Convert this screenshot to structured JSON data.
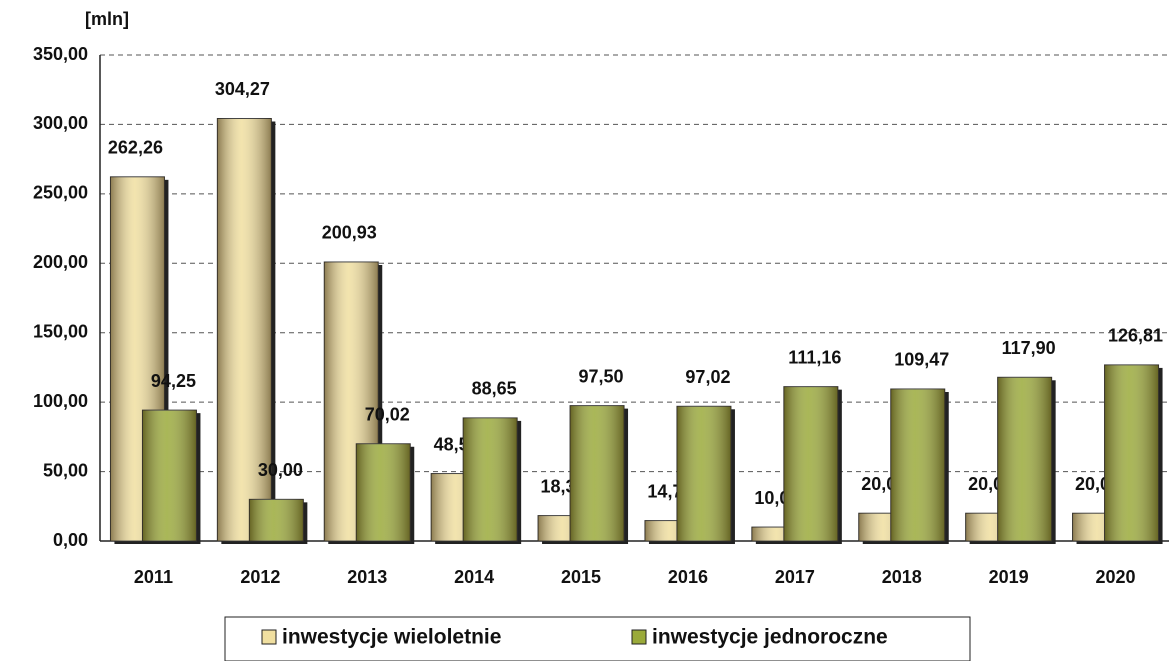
{
  "chart_data": {
    "type": "bar",
    "y_axis_label": "[mln]",
    "categories": [
      "2011",
      "2012",
      "2013",
      "2014",
      "2015",
      "2016",
      "2017",
      "2018",
      "2019",
      "2020"
    ],
    "series": [
      {
        "name": "inwestycje wieloletnie",
        "color": "#f0dfa0",
        "values": [
          262.26,
          304.27,
          200.93,
          48.57,
          18.3,
          14.7,
          10.02,
          20.01,
          20.01,
          20.0
        ],
        "value_labels": [
          "262,26",
          "304,27",
          "200,93",
          "48,57",
          "18,30",
          "14,70",
          "10,02",
          "20,01",
          "20,01",
          "20,00"
        ]
      },
      {
        "name": "inwestycje jednoroczne",
        "color": "#9aaa3a",
        "values": [
          94.25,
          30.0,
          70.02,
          88.65,
          97.5,
          97.02,
          111.16,
          109.47,
          117.9,
          126.81
        ],
        "value_labels": [
          "94,25",
          "30,00",
          "70,02",
          "88,65",
          "97,50",
          "97,02",
          "111,16",
          "109,47",
          "117,90",
          "126,81"
        ]
      }
    ],
    "ylim": [
      0,
      350
    ],
    "yticks": [
      {
        "value": 0,
        "label": "0,00"
      },
      {
        "value": 50,
        "label": "50,00"
      },
      {
        "value": 100,
        "label": "100,00"
      },
      {
        "value": 150,
        "label": "150,00"
      },
      {
        "value": 200,
        "label": "200,00"
      },
      {
        "value": 250,
        "label": "250,00"
      },
      {
        "value": 300,
        "label": "300,00"
      },
      {
        "value": 350,
        "label": "350,00"
      }
    ],
    "grid": true,
    "legend": "bottom"
  }
}
